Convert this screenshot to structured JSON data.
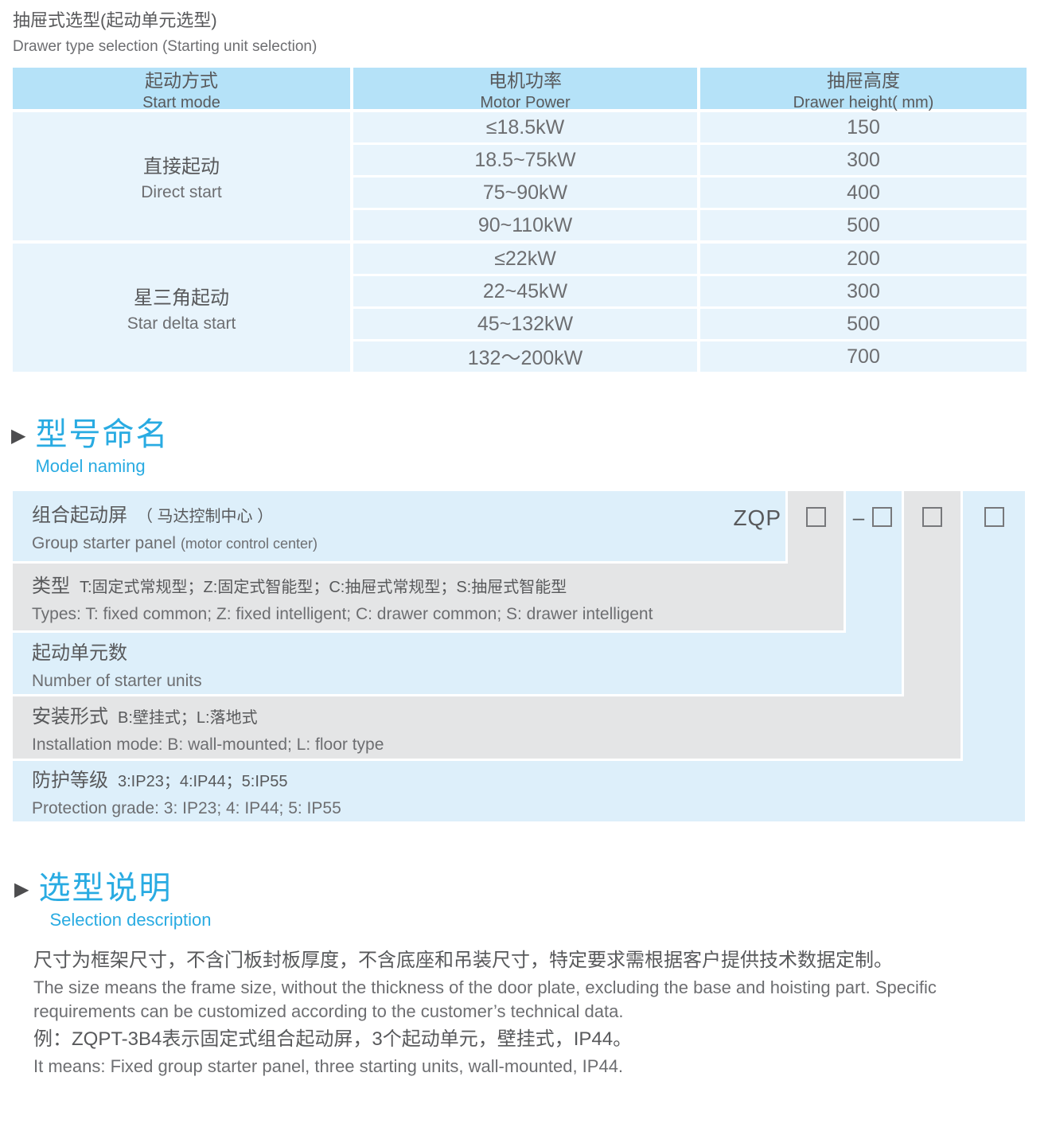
{
  "colors": {
    "accent": "#29abe2",
    "header_blue": "#b5e2f8",
    "row_blue": "#e8f4fc",
    "diag_blue": "#ddeffa",
    "diag_gray": "#e4e5e6",
    "text_dark": "#58595b",
    "text_mid": "#6d6e71",
    "box_border": "#77787b"
  },
  "page": {
    "title_zh": "抽屉式选型(起动单元选型)",
    "title_en": "Drawer type selection (Starting unit selection)"
  },
  "table": {
    "headers": [
      {
        "zh": "起动方式",
        "en": "Start mode"
      },
      {
        "zh": "电机功率",
        "en": "Motor Power"
      },
      {
        "zh": "抽屉高度",
        "en": "Drawer height( mm)"
      }
    ],
    "groups": [
      {
        "mode_zh": "直接起动",
        "mode_en": "Direct start",
        "rows": [
          {
            "power": "≤18.5kW",
            "height": "150"
          },
          {
            "power": "18.5~75kW",
            "height": "300"
          },
          {
            "power": "75~90kW",
            "height": "400"
          },
          {
            "power": "90~110kW",
            "height": "500"
          }
        ]
      },
      {
        "mode_zh": "星三角起动",
        "mode_en": "Star delta start",
        "rows": [
          {
            "power": "≤22kW",
            "height": "200"
          },
          {
            "power": "22~45kW",
            "height": "300"
          },
          {
            "power": "45~132kW",
            "height": "500"
          },
          {
            "power": "132～200kW",
            "height": "700"
          }
        ]
      }
    ]
  },
  "model_naming": {
    "heading_zh": "型号命名",
    "heading_en": "Model naming",
    "code": "ZQP",
    "dash": "–",
    "rows": [
      {
        "zh_label": "组合起动屏",
        "zh_detail": "（ 马达控制中心 ）",
        "en_label": "Group starter panel",
        "en_detail": "(motor control center)"
      },
      {
        "zh_label": "类型",
        "zh_detail": "T:固定式常规型；Z:固定式智能型；C:抽屉式常规型；S:抽屉式智能型",
        "en_label": "Types: T: fixed common; Z: fixed intelligent; C: drawer common; S: drawer intelligent",
        "en_detail": ""
      },
      {
        "zh_label": "起动单元数",
        "zh_detail": "",
        "en_label": "Number of starter units",
        "en_detail": ""
      },
      {
        "zh_label": "安装形式",
        "zh_detail": "B:壁挂式；L:落地式",
        "en_label": "Installation mode: B: wall-mounted; L: floor type",
        "en_detail": ""
      },
      {
        "zh_label": "防护等级",
        "zh_detail": "3:IP23；4:IP44；5:IP55",
        "en_label": "Protection grade:  3: IP23; 4: IP44; 5: IP55",
        "en_detail": ""
      }
    ]
  },
  "selection": {
    "heading_zh": "选型说明",
    "heading_en": "Selection description",
    "para1_zh": "尺寸为框架尺寸，不含门板封板厚度，不含底座和吊装尺寸，特定要求需根据客户提供技术数据定制。",
    "para1_en": "The size means the frame size, without the thickness of the door plate, excluding the base and hoisting part. Specific requirements can be customized according to the customer’s technical data.",
    "para2_zh": "例：ZQPT-3B4表示固定式组合起动屏，3个起动单元，壁挂式，IP44。",
    "para2_en": "It means: Fixed group starter panel, three starting units, wall-mounted, IP44."
  }
}
